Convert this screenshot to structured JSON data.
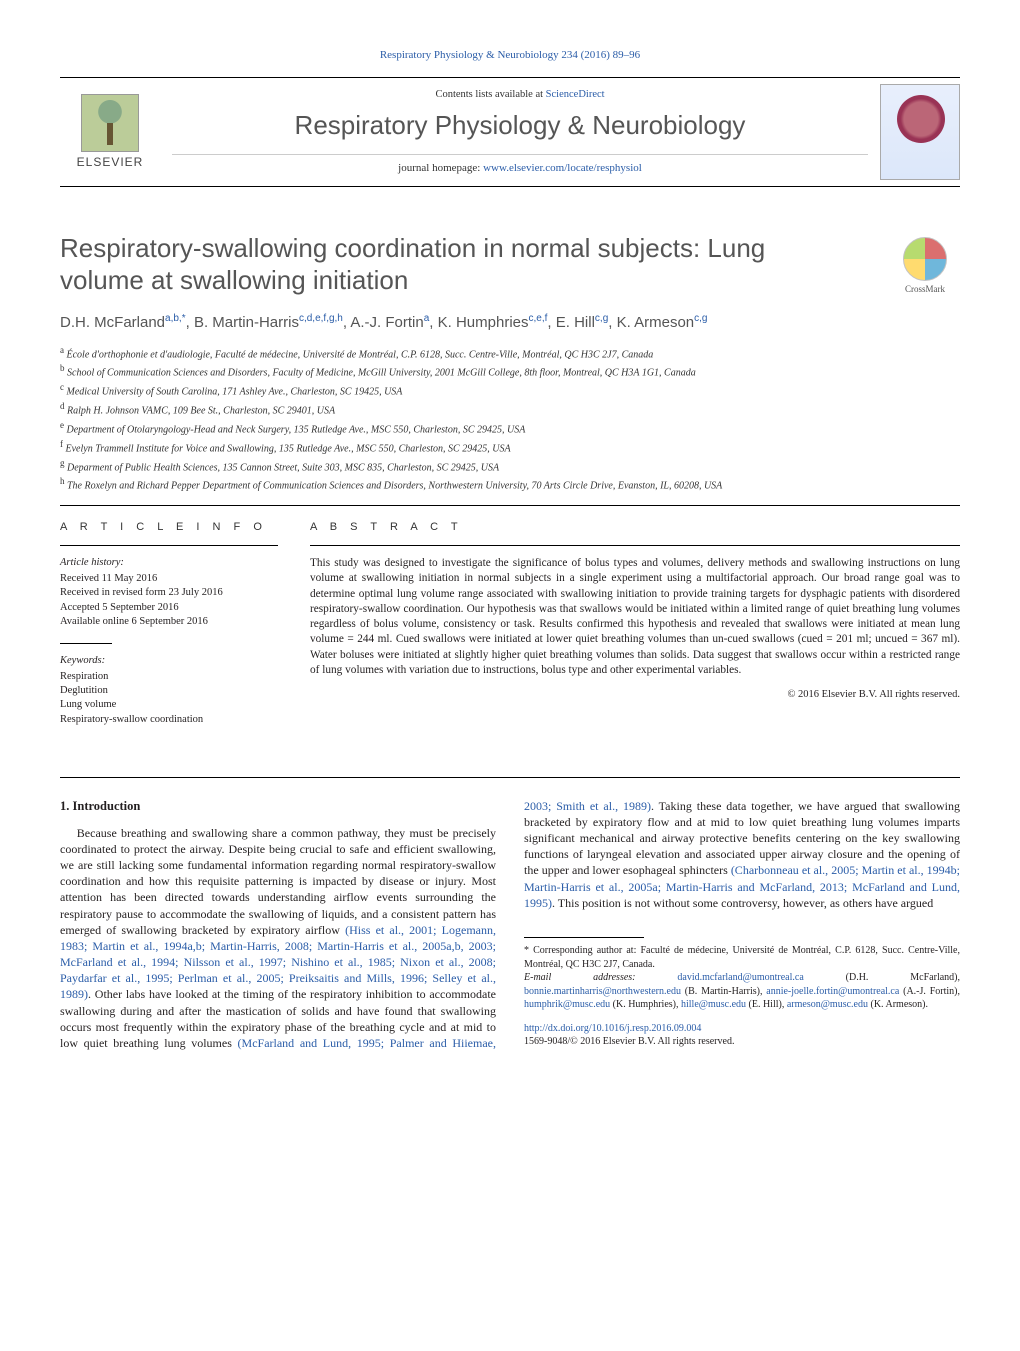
{
  "runningHeader": "Respiratory Physiology & Neurobiology 234 (2016) 89–96",
  "masthead": {
    "contentsPrefix": "Contents lists available at ",
    "contentsLink": "ScienceDirect",
    "journalName": "Respiratory Physiology & Neurobiology",
    "homepagePrefix": "journal homepage: ",
    "homepageUrl": "www.elsevier.com/locate/resphysiol",
    "publisherWord": "ELSEVIER"
  },
  "crossmark": "CrossMark",
  "title": "Respiratory-swallowing coordination in normal subjects: Lung volume at swallowing initiation",
  "authorsHtml": "D.H. McFarland<sup>a,b,*</sup>, B. Martin-Harris<sup>c,d,e,f,g,h</sup>, A.-J. Fortin<sup>a</sup>, K. Humphries<sup>c,e,f</sup>, E. Hill<sup>c,g</sup>, K. Armeson<sup>c,g</sup>",
  "affiliations": [
    {
      "k": "a",
      "t": "École d'orthophonie et d'audiologie, Faculté de médecine, Université de Montréal, C.P. 6128, Succ. Centre-Ville, Montréal, QC H3C 2J7, Canada"
    },
    {
      "k": "b",
      "t": "School of Communication Sciences and Disorders, Faculty of Medicine, McGill University, 2001 McGill College, 8th floor, Montreal, QC H3A 1G1, Canada"
    },
    {
      "k": "c",
      "t": "Medical University of South Carolina, 171 Ashley Ave., Charleston, SC 19425, USA"
    },
    {
      "k": "d",
      "t": "Ralph H. Johnson VAMC, 109 Bee St., Charleston, SC 29401, USA"
    },
    {
      "k": "e",
      "t": "Department of Otolaryngology-Head and Neck Surgery, 135 Rutledge Ave., MSC 550, Charleston, SC 29425, USA"
    },
    {
      "k": "f",
      "t": "Evelyn Trammell Institute for Voice and Swallowing, 135 Rutledge Ave., MSC 550, Charleston, SC 29425, USA"
    },
    {
      "k": "g",
      "t": "Deparment of Public Health Sciences, 135 Cannon Street, Suite 303, MSC 835, Charleston, SC 29425, USA"
    },
    {
      "k": "h",
      "t": "The Roxelyn and Richard Pepper Department of Communication Sciences and Disorders, Northwestern University, 70 Arts Circle Drive, Evanston, IL, 60208, USA"
    }
  ],
  "articleInfo": {
    "header": "A R T I C L E   I N F O",
    "historyLabel": "Article history:",
    "history": [
      "Received 11 May 2016",
      "Received in revised form 23 July 2016",
      "Accepted 5 September 2016",
      "Available online 6 September 2016"
    ],
    "keywordsLabel": "Keywords:",
    "keywords": [
      "Respiration",
      "Deglutition",
      "Lung volume",
      "Respiratory-swallow coordination"
    ]
  },
  "abstract": {
    "header": "A B S T R A C T",
    "text": "This study was designed to investigate the significance of bolus types and volumes, delivery methods and swallowing instructions on lung volume at swallowing initiation in normal subjects in a single experiment using a multifactorial approach. Our broad range goal was to determine optimal lung volume range associated with swallowing initiation to provide training targets for dysphagic patients with disordered respiratory-swallow coordination. Our hypothesis was that swallows would be initiated within a limited range of quiet breathing lung volumes regardless of bolus volume, consistency or task. Results confirmed this hypothesis and revealed that swallows were initiated at mean lung volume = 244 ml. Cued swallows were initiated at lower quiet breathing volumes than un-cued swallows (cued = 201 ml; uncued = 367 ml). Water boluses were initiated at slightly higher quiet breathing volumes than solids. Data suggest that swallows occur within a restricted range of lung volumes with variation due to instructions, bolus type and other experimental variables.",
    "copyright": "© 2016 Elsevier B.V. All rights reserved."
  },
  "introHeading": "1.  Introduction",
  "introCol1": "Because breathing and swallowing share a common pathway, they must be precisely coordinated to protect the airway. Despite being crucial to safe and efficient swallowing, we are still lacking some fundamental information regarding normal respiratory-swallow coordination and how this requisite patterning is impacted by disease or injury. Most attention has been directed towards understanding airflow events surrounding the respiratory pause to accommodate the swallowing of liquids, and a consistent pattern has emerged of swallowing bracketed by expiratory airflow",
  "introRefs1": "(Hiss et al., 2001; Logemann, 1983; Martin et al., 1994a,b; Martin-Harris, 2008; Martin-Harris et al., 2005a,b, 2003; McFarland et al., 1994; Nilsson et al., 1997; Nishino et al., 1985; Nixon et al., 2008; Paydarfar et al., 1995; Perlman et al., 2005; Preiksaitis and Mills, 1996; Selley et al., 1989)",
  "introCol2a": ". Other labs have looked at the timing of the respiratory inhibition to accommodate swallowing during and after the mastication of solids and have found that swallowing occurs most frequently within the expiratory phase of the breathing cycle and at mid to low quiet breathing lung volumes ",
  "introRefs2": "(McFarland and Lund, 1995; Palmer and Hiiemae, 2003; Smith et al., 1989)",
  "introCol2b": ". Taking these data together, we have argued that swallowing bracketed by expiratory flow and at mid to low quiet breathing lung volumes imparts significant mechanical and airway protective benefits centering on the key swallowing functions of laryngeal elevation and associated upper airway closure and the opening of the upper and lower esophageal sphincters ",
  "introRefs3": "(Charbonneau et al., 2005; Martin et al., 1994b; Martin-Harris et al., 2005a; Martin-Harris and McFarland, 2013; McFarland and Lund, 1995)",
  "introCol2c": ". This position is not without some controversy, however, as others have argued",
  "footnotes": {
    "corr": "* Corresponding author at: Faculté de médecine, Université de Montréal, C.P. 6128, Succ. Centre-Ville, Montréal, QC H3C 2J7, Canada.",
    "emailsLabel": "E-mail addresses: ",
    "emails": [
      {
        "e": "david.mcfarland@umontreal.ca",
        "n": "(D.H. McFarland)"
      },
      {
        "e": "bonnie.martinharris@northwestern.edu",
        "n": "(B. Martin-Harris)"
      },
      {
        "e": "annie-joelle.fortin@umontreal.ca",
        "n": "(A.-J. Fortin)"
      },
      {
        "e": "humphrik@musc.edu",
        "n": "(K. Humphries)"
      },
      {
        "e": "hille@musc.edu",
        "n": "(E. Hill)"
      },
      {
        "e": "armeson@musc.edu",
        "n": "(K. Armeson)"
      }
    ]
  },
  "doi": {
    "url": "http://dx.doi.org/10.1016/j.resp.2016.09.004",
    "issn": "1569-9048/© 2016 Elsevier B.V. All rights reserved."
  }
}
